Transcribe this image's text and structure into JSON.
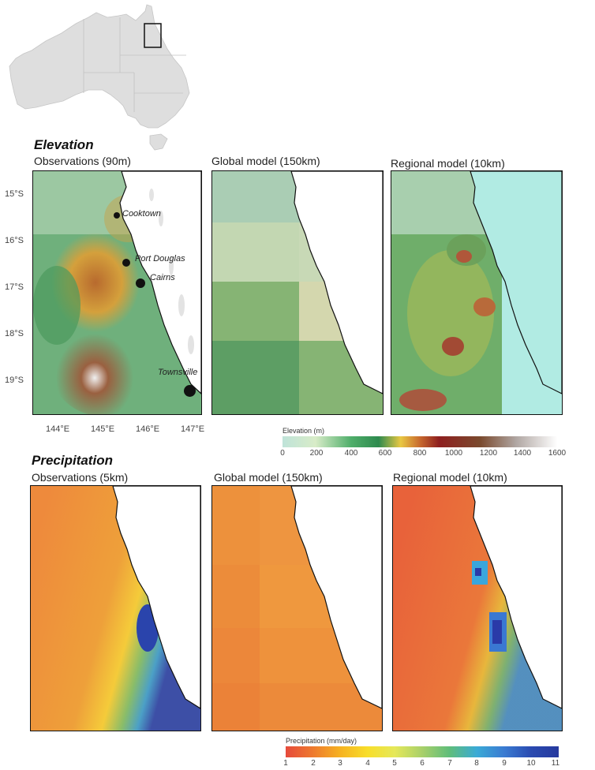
{
  "sections": {
    "elevation_title": "Elevation",
    "precipitation_title": "Precipitation"
  },
  "elevation_panels": [
    {
      "title": "Observations (90m)"
    },
    {
      "title": "Global model (150km)"
    },
    {
      "title": "Regional model (10km)"
    }
  ],
  "precipitation_panels": [
    {
      "title": "Observations (5km)"
    },
    {
      "title": "Global model (150km)"
    },
    {
      "title": "Regional model (10km)"
    }
  ],
  "lat_ticks": [
    "15°S",
    "16°S",
    "17°S",
    "18°S",
    "19°S"
  ],
  "lon_ticks": [
    "144°E",
    "145°E",
    "146°E",
    "147°E"
  ],
  "cities": [
    {
      "name": "Cooktown"
    },
    {
      "name": "Port Douglas"
    },
    {
      "name": "Cairns"
    },
    {
      "name": "Townsville"
    }
  ],
  "elevation_colorbar": {
    "title": "Elevation (m)",
    "ticks": [
      "0",
      "200",
      "400",
      "600",
      "800",
      "1000",
      "1200",
      "1400",
      "1600"
    ],
    "colors": [
      "#bfe3d9",
      "#d8ecc8",
      "#4fae6a",
      "#2e8a4e",
      "#e9c843",
      "#c86a2e",
      "#8e1f1f",
      "#7a4a2e",
      "#b0a6a2",
      "#ffffff"
    ]
  },
  "precipitation_colorbar": {
    "title": "Precipitation (mm/day)",
    "ticks": [
      "1",
      "2",
      "3",
      "4",
      "5",
      "6",
      "7",
      "8",
      "9",
      "10",
      "11"
    ],
    "colors": [
      "#e64a3c",
      "#ee7a2e",
      "#f6b221",
      "#f8de2a",
      "#e5e85a",
      "#a8d06a",
      "#5fbd7a",
      "#3aaad6",
      "#3a7bd2",
      "#2a4ab0",
      "#26399e"
    ]
  }
}
